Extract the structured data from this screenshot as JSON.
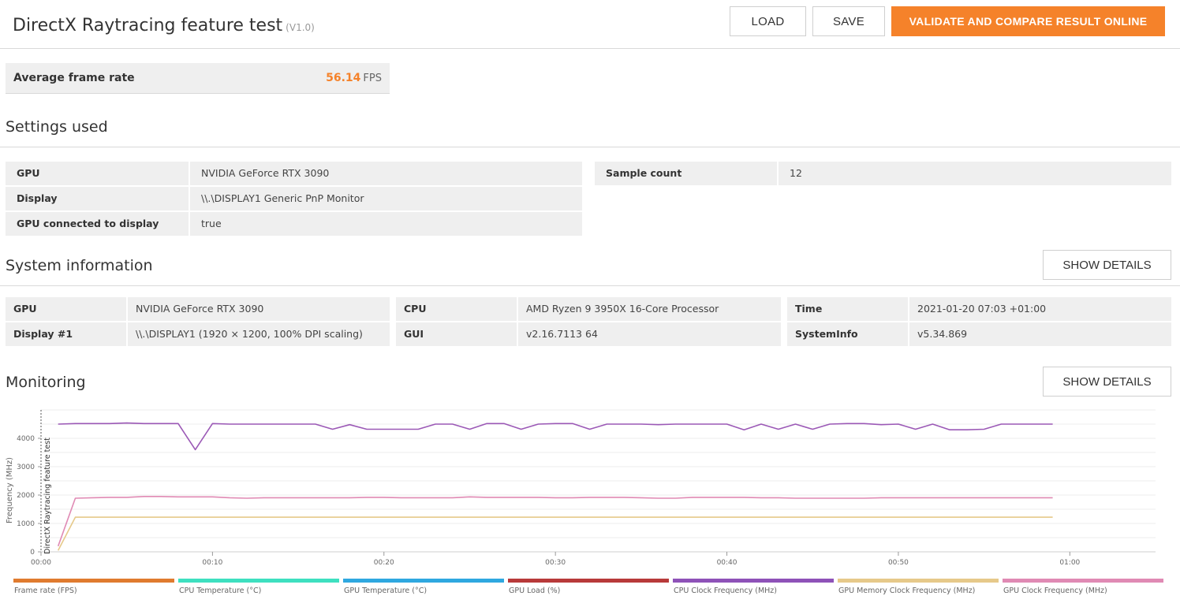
{
  "header": {
    "title": "DirectX Raytracing feature test",
    "version": "(V1.0)",
    "load_label": "LOAD",
    "save_label": "SAVE",
    "validate_label": "VALIDATE AND COMPARE RESULT ONLINE"
  },
  "score": {
    "label": "Average frame rate",
    "value": "56.14",
    "unit": "FPS"
  },
  "settings": {
    "title": "Settings used",
    "left": [
      {
        "key": "GPU",
        "value": "NVIDIA GeForce RTX 3090"
      },
      {
        "key": "Display",
        "value": "\\\\.\\DISPLAY1 Generic PnP Monitor"
      },
      {
        "key": "GPU connected to display",
        "value": "true"
      }
    ],
    "right": [
      {
        "key": "Sample count",
        "value": "12"
      }
    ]
  },
  "system": {
    "title": "System information",
    "details_label": "SHOW DETAILS",
    "col1": [
      {
        "key": "GPU",
        "value": "NVIDIA GeForce RTX 3090"
      },
      {
        "key": "Display #1",
        "value": "\\\\.\\DISPLAY1 (1920 × 1200, 100% DPI scaling)"
      }
    ],
    "col2": [
      {
        "key": "CPU",
        "value": "AMD Ryzen 9 3950X 16-Core Processor"
      },
      {
        "key": "GUI",
        "value": "v2.16.7113 64"
      }
    ],
    "col3": [
      {
        "key": "Time",
        "value": "2021-01-20 07:03 +01:00"
      },
      {
        "key": "SystemInfo",
        "value": "v5.34.869"
      }
    ]
  },
  "monitoring": {
    "title": "Monitoring",
    "details_label": "SHOW DETAILS"
  },
  "chart_data": {
    "type": "line",
    "ylabel": "Frequency (MHz)",
    "marker_label": "DirectX Raytracing feature test",
    "ylim": [
      0,
      5000
    ],
    "yticks": [
      0,
      1000,
      2000,
      3000,
      4000
    ],
    "xticks": [
      "00:00",
      "00:10",
      "00:20",
      "00:30",
      "00:40",
      "00:50",
      "01:00"
    ],
    "xlim_seconds": [
      0,
      65
    ],
    "grid": true,
    "legend_position": "bottom",
    "legend": [
      {
        "name": "Frame rate (FPS)",
        "color": "#e07b2f"
      },
      {
        "name": "CPU Temperature (°C)",
        "color": "#3ee0c0"
      },
      {
        "name": "GPU Temperature (°C)",
        "color": "#2fa8e0"
      },
      {
        "name": "GPU Load (%)",
        "color": "#b83a3a"
      },
      {
        "name": "CPU Clock Frequency (MHz)",
        "color": "#8e52b8"
      },
      {
        "name": "GPU Memory Clock Frequency (MHz)",
        "color": "#e6c98a"
      },
      {
        "name": "GPU Clock Frequency (MHz)",
        "color": "#e08ab4"
      }
    ],
    "series": [
      {
        "name": "CPU Clock Frequency (MHz)",
        "color": "#9b59b6",
        "x": [
          1,
          2,
          3,
          4,
          5,
          6,
          7,
          8,
          9,
          10,
          11,
          12,
          13,
          14,
          15,
          16,
          17,
          18,
          19,
          20,
          21,
          22,
          23,
          24,
          25,
          26,
          27,
          28,
          29,
          30,
          31,
          32,
          33,
          34,
          35,
          36,
          37,
          38,
          39,
          40,
          41,
          42,
          43,
          44,
          45,
          46,
          47,
          48,
          49,
          50,
          51,
          52,
          53,
          54,
          55,
          56,
          57,
          58,
          59
        ],
        "values": [
          4500,
          4520,
          4520,
          4520,
          4540,
          4520,
          4520,
          4520,
          3600,
          4520,
          4500,
          4500,
          4500,
          4500,
          4500,
          4500,
          4320,
          4480,
          4320,
          4320,
          4320,
          4320,
          4500,
          4500,
          4320,
          4520,
          4520,
          4320,
          4500,
          4520,
          4520,
          4320,
          4500,
          4500,
          4500,
          4480,
          4500,
          4500,
          4500,
          4500,
          4300,
          4500,
          4320,
          4500,
          4320,
          4500,
          4520,
          4520,
          4480,
          4500,
          4320,
          4500,
          4300,
          4300,
          4320,
          4500,
          4500,
          4500,
          4500
        ]
      },
      {
        "name": "GPU Clock Frequency (MHz)",
        "color": "#e08ab4",
        "x": [
          1,
          2,
          3,
          4,
          5,
          6,
          7,
          8,
          9,
          10,
          11,
          12,
          13,
          14,
          15,
          16,
          17,
          18,
          19,
          20,
          21,
          22,
          23,
          24,
          25,
          26,
          27,
          28,
          29,
          30,
          31,
          32,
          33,
          34,
          35,
          36,
          37,
          38,
          39,
          40,
          41,
          42,
          43,
          44,
          45,
          46,
          47,
          48,
          49,
          50,
          51,
          52,
          53,
          54,
          55,
          56,
          57,
          58,
          59
        ],
        "values": [
          200,
          1890,
          1905,
          1920,
          1920,
          1950,
          1950,
          1935,
          1935,
          1935,
          1905,
          1890,
          1905,
          1905,
          1905,
          1905,
          1905,
          1905,
          1920,
          1920,
          1905,
          1905,
          1905,
          1905,
          1935,
          1920,
          1920,
          1920,
          1920,
          1905,
          1905,
          1920,
          1920,
          1920,
          1905,
          1890,
          1890,
          1920,
          1920,
          1920,
          1920,
          1905,
          1905,
          1890,
          1890,
          1890,
          1890,
          1890,
          1905,
          1905,
          1905,
          1905,
          1905,
          1905,
          1905,
          1905,
          1905,
          1905,
          1905
        ]
      },
      {
        "name": "GPU Memory Clock Frequency (MHz)",
        "color": "#e6c98a",
        "x": [
          1,
          2,
          10,
          20,
          30,
          40,
          50,
          59
        ],
        "values": [
          50,
          1219,
          1219,
          1219,
          1219,
          1219,
          1219,
          1219
        ]
      }
    ]
  }
}
